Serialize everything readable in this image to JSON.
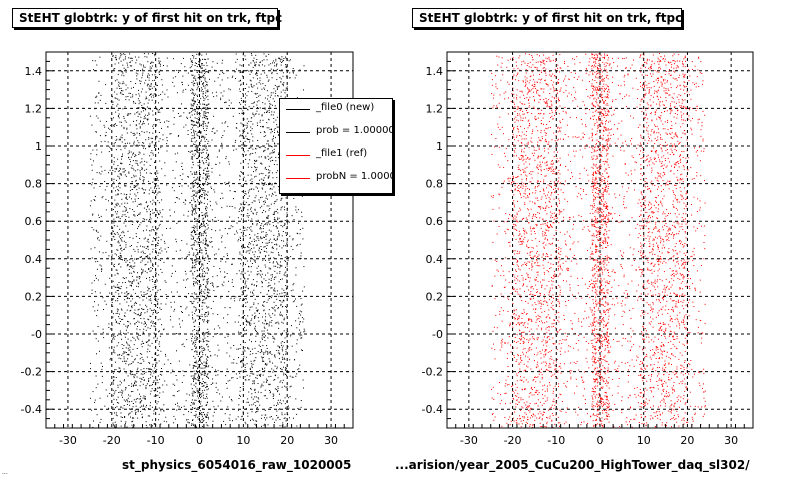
{
  "colors": {
    "new": "#000000",
    "ref": "#ff0000",
    "grid": "#000000",
    "background": "#ffffff"
  },
  "footer_note": "...",
  "legend": [
    {
      "label": "_file0 (new)",
      "color": "#000000"
    },
    {
      "label": "prob = 1.000000",
      "color": "#000000"
    },
    {
      "label": "_file1 (ref)",
      "color": "#ff0000"
    },
    {
      "label": "probN = 1.000000",
      "color": "#ff0000"
    }
  ],
  "chart_data": [
    {
      "type": "scatter",
      "title": "StEHT globtrk: y of first hit on trk, ftpc",
      "xlabel": "st_physics_6054016_raw_1020005",
      "xlim": [
        -35,
        35
      ],
      "ylim": [
        -0.5,
        1.5
      ],
      "xticks": [
        "-30",
        "-20",
        "-10",
        "0",
        "10",
        "20",
        "30"
      ],
      "yticks": [
        "-0.4",
        "-0.2",
        "-0",
        "0.2",
        "0.4",
        "0.6",
        "0.8",
        "1",
        "1.2",
        "1.4"
      ],
      "grid": true,
      "series": [
        {
          "name": "_file0 (new)",
          "color": "#000000",
          "x_band": [
            -25,
            24
          ],
          "dense_bands": [
            [
              -20,
              -9
            ],
            [
              -2,
              2
            ],
            [
              9,
              20
            ]
          ]
        }
      ],
      "legend_position": "top-right"
    },
    {
      "type": "scatter",
      "title": "StEHT globtrk: y of first hit on trk, ftpc",
      "xlabel": "...arision/year_2005_CuCu200_HighTower_daq_sl302/",
      "xlim": [
        -35,
        35
      ],
      "ylim": [
        -0.5,
        1.5
      ],
      "xticks": [
        "-30",
        "-20",
        "-10",
        "0",
        "10",
        "20",
        "30"
      ],
      "yticks": [
        "-0.4",
        "-0.2",
        "-0",
        "0.2",
        "0.4",
        "0.6",
        "0.8",
        "1",
        "1.2",
        "1.4"
      ],
      "grid": true,
      "series": [
        {
          "name": "_file1 (ref)",
          "color": "#ff0000",
          "x_band": [
            -25,
            24
          ],
          "dense_bands": [
            [
              -20,
              -9
            ],
            [
              -2,
              2
            ],
            [
              9,
              20
            ]
          ]
        }
      ]
    }
  ]
}
